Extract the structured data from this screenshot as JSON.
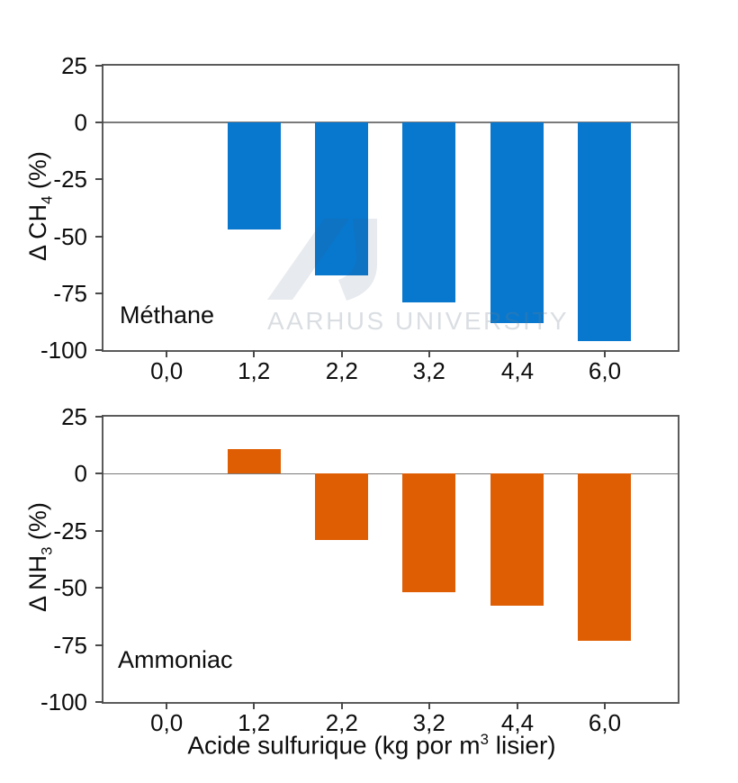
{
  "watermark": {
    "text": "AARHUS UNIVERSITY"
  },
  "xaxis_title": {
    "prefix": "Acide sulfurique (kg por m",
    "sup": "3",
    "suffix": " lisier)"
  },
  "chart_data": [
    {
      "type": "bar",
      "label_in_plot": "Méthane",
      "ylabel": {
        "prefix": "Δ CH",
        "sub": "4",
        "suffix": " (%)"
      },
      "categories": [
        "0,0",
        "1,2",
        "2,2",
        "3,2",
        "4,4",
        "6,0"
      ],
      "values": [
        null,
        -47,
        -67,
        -79,
        -88,
        -96
      ],
      "bar_color": "#0878ce",
      "ylim": [
        -100,
        25
      ],
      "yticks": [
        25,
        0,
        -25,
        -50,
        -75,
        -100
      ],
      "zero_line": true,
      "grid": false,
      "legend": "none"
    },
    {
      "type": "bar",
      "label_in_plot": "Ammoniac",
      "ylabel": {
        "prefix": "Δ NH",
        "sub": "3",
        "suffix": " (%)"
      },
      "categories": [
        "0,0",
        "1,2",
        "2,2",
        "3,2",
        "4,4",
        "6,0"
      ],
      "values": [
        null,
        11,
        -29,
        -52,
        -58,
        -73
      ],
      "bar_color": "#df5e04",
      "ylim": [
        -100,
        25
      ],
      "yticks": [
        25,
        0,
        -25,
        -50,
        -75,
        -100
      ],
      "zero_line": true,
      "grid": false,
      "legend": "none"
    }
  ]
}
